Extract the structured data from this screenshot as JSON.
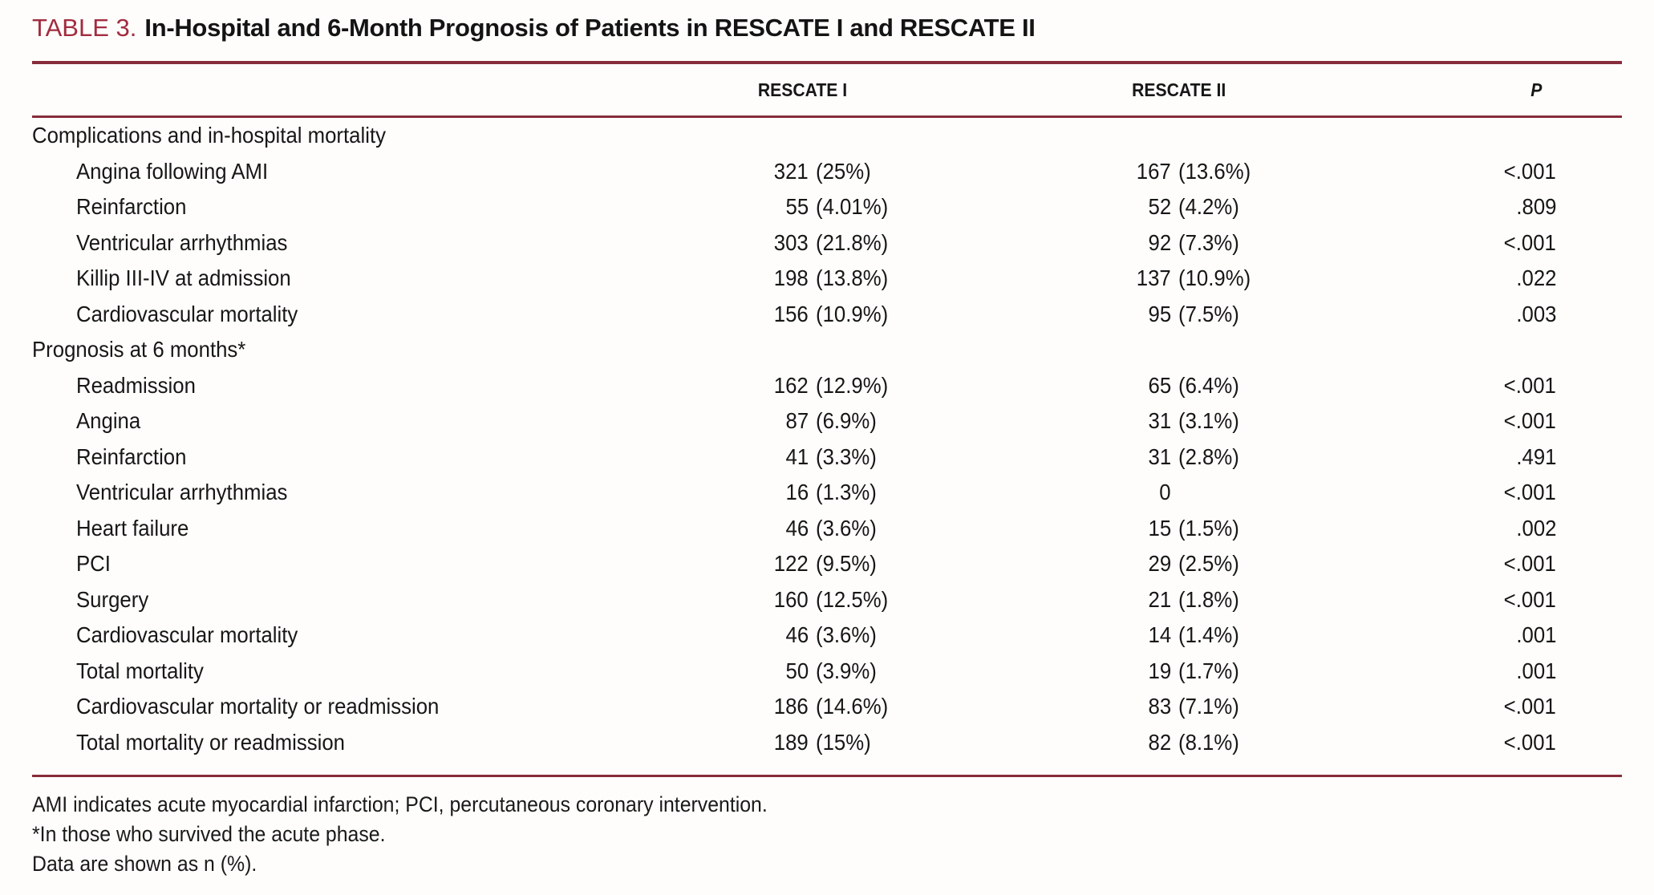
{
  "colors": {
    "rule_accent": "#872c3b",
    "title_label": "#a22c40",
    "text": "#171717",
    "background": "#fefdfb"
  },
  "table": {
    "label": "TABLE 3.",
    "title": "In-Hospital and 6-Month Prognosis of Patients in RESCATE I and RESCATE II",
    "columns": [
      "RESCATE I",
      "RESCATE II",
      "P"
    ],
    "rows": [
      {
        "type": "section",
        "label": "Complications and in-hospital mortality"
      },
      {
        "type": "item",
        "label": "Angina following AMI",
        "r1": {
          "n": "321",
          "pct": "(25%)"
        },
        "r2": {
          "n": "167",
          "pct": "(13.6%)"
        },
        "p": "<.001"
      },
      {
        "type": "item",
        "label": "Reinfarction",
        "r1": {
          "n": "55",
          "pct": "(4.01%)"
        },
        "r2": {
          "n": "52",
          "pct": "(4.2%)"
        },
        "p": ".809"
      },
      {
        "type": "item",
        "label": "Ventricular arrhythmias",
        "r1": {
          "n": "303",
          "pct": "(21.8%)"
        },
        "r2": {
          "n": "92",
          "pct": "(7.3%)"
        },
        "p": "<.001"
      },
      {
        "type": "item",
        "label": "Killip III-IV at admission",
        "r1": {
          "n": "198",
          "pct": "(13.8%)"
        },
        "r2": {
          "n": "137",
          "pct": "(10.9%)"
        },
        "p": ".022"
      },
      {
        "type": "item",
        "label": "Cardiovascular mortality",
        "r1": {
          "n": "156",
          "pct": "(10.9%)"
        },
        "r2": {
          "n": "95",
          "pct": "(7.5%)"
        },
        "p": ".003"
      },
      {
        "type": "section",
        "label": "Prognosis at 6 months*"
      },
      {
        "type": "item",
        "label": "Readmission",
        "r1": {
          "n": "162",
          "pct": "(12.9%)"
        },
        "r2": {
          "n": "65",
          "pct": "(6.4%)"
        },
        "p": "<.001"
      },
      {
        "type": "item",
        "label": "Angina",
        "r1": {
          "n": "87",
          "pct": "(6.9%)"
        },
        "r2": {
          "n": "31",
          "pct": "(3.1%)"
        },
        "p": "<.001"
      },
      {
        "type": "item",
        "label": "Reinfarction",
        "r1": {
          "n": "41",
          "pct": "(3.3%)"
        },
        "r2": {
          "n": "31",
          "pct": "(2.8%)"
        },
        "p": ".491"
      },
      {
        "type": "item",
        "label": "Ventricular arrhythmias",
        "r1": {
          "n": "16",
          "pct": "(1.3%)"
        },
        "r2": {
          "n": "0",
          "pct": ""
        },
        "p": "<.001"
      },
      {
        "type": "item",
        "label": "Heart failure",
        "r1": {
          "n": "46",
          "pct": "(3.6%)"
        },
        "r2": {
          "n": "15",
          "pct": "(1.5%)"
        },
        "p": ".002"
      },
      {
        "type": "item",
        "label": "PCI",
        "r1": {
          "n": "122",
          "pct": "(9.5%)"
        },
        "r2": {
          "n": "29",
          "pct": "(2.5%)"
        },
        "p": "<.001"
      },
      {
        "type": "item",
        "label": "Surgery",
        "r1": {
          "n": "160",
          "pct": "(12.5%)"
        },
        "r2": {
          "n": "21",
          "pct": "(1.8%)"
        },
        "p": "<.001"
      },
      {
        "type": "item",
        "label": "Cardiovascular mortality",
        "r1": {
          "n": "46",
          "pct": "(3.6%)"
        },
        "r2": {
          "n": "14",
          "pct": "(1.4%)"
        },
        "p": ".001"
      },
      {
        "type": "item",
        "label": "Total mortality",
        "r1": {
          "n": "50",
          "pct": "(3.9%)"
        },
        "r2": {
          "n": "19",
          "pct": "(1.7%)"
        },
        "p": ".001"
      },
      {
        "type": "item",
        "label": "Cardiovascular mortality or readmission",
        "r1": {
          "n": "186",
          "pct": "(14.6%)"
        },
        "r2": {
          "n": "83",
          "pct": "(7.1%)"
        },
        "p": "<.001"
      },
      {
        "type": "item",
        "label": "Total mortality or readmission",
        "r1": {
          "n": "189",
          "pct": "(15%)"
        },
        "r2": {
          "n": "82",
          "pct": "(8.1%)"
        },
        "p": "<.001"
      }
    ],
    "footnotes": [
      "AMI indicates acute myocardial infarction; PCI, percutaneous coronary intervention.",
      "*In those who survived the acute phase.",
      "Data are shown as n (%)."
    ]
  }
}
